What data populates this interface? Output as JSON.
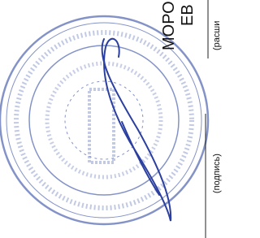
{
  "document": {
    "name_line": "МОРО",
    "name_line_2": "ЕВ",
    "caption_decoding": "(расши",
    "caption_signature": "(подпись)"
  }
}
